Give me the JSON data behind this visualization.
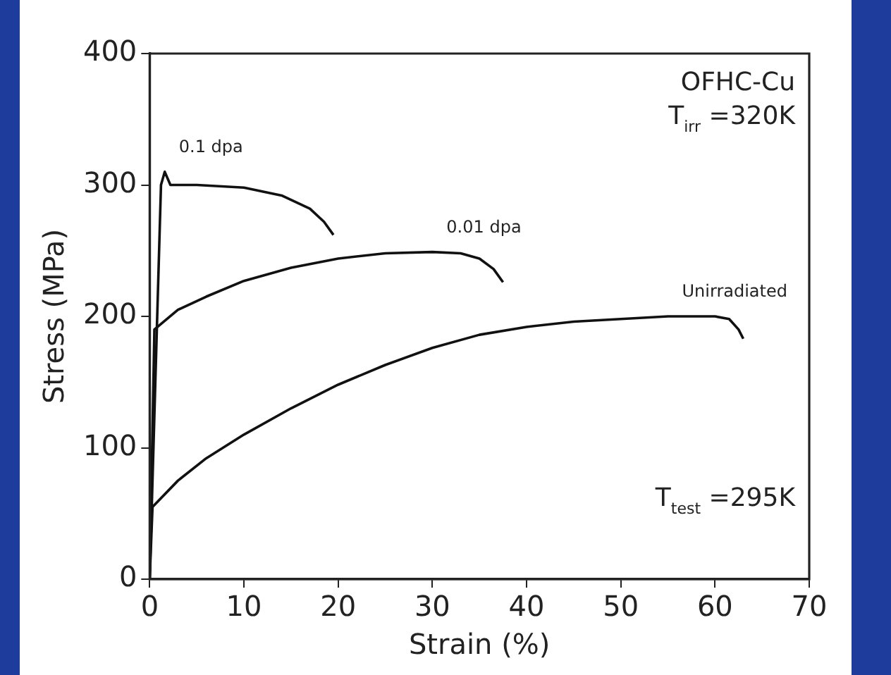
{
  "chart_data": {
    "type": "line",
    "xlabel": "Strain (%)",
    "ylabel": "Stress (MPa)",
    "xlim": [
      0,
      70
    ],
    "xticks": [
      0,
      10,
      20,
      30,
      40,
      50,
      60,
      70
    ],
    "ylim": [
      0,
      400
    ],
    "yticks": [
      0,
      100,
      200,
      300,
      400
    ],
    "grid": false,
    "legend": false,
    "marker": "none",
    "line_style": "solid",
    "series": [
      {
        "name": "0.1 dpa",
        "color": "#111111",
        "x": [
          0,
          1.2,
          1.6,
          2.2,
          5,
          10,
          14,
          17,
          18.5,
          19.5
        ],
        "values": [
          0,
          300,
          310,
          300,
          300,
          298,
          292,
          282,
          272,
          262
        ]
      },
      {
        "name": "0.01 dpa",
        "color": "#111111",
        "x": [
          0,
          0.5,
          3,
          6,
          10,
          15,
          20,
          25,
          30,
          33,
          35,
          36.5,
          37.5
        ],
        "values": [
          0,
          190,
          205,
          215,
          227,
          237,
          244,
          248,
          249,
          248,
          244,
          236,
          226
        ]
      },
      {
        "name": "Unirradiated",
        "color": "#111111",
        "x": [
          0,
          0.3,
          3,
          6,
          10,
          15,
          20,
          25,
          30,
          35,
          40,
          45,
          50,
          55,
          60,
          61.5,
          62.5,
          63
        ],
        "values": [
          0,
          55,
          75,
          92,
          110,
          130,
          148,
          163,
          176,
          186,
          192,
          196,
          198,
          200,
          200,
          198,
          190,
          183
        ]
      }
    ],
    "annotations": [
      "OFHC-Cu",
      "T$_{irr}$ =320K",
      "T$_{test}$ =295K"
    ]
  }
}
